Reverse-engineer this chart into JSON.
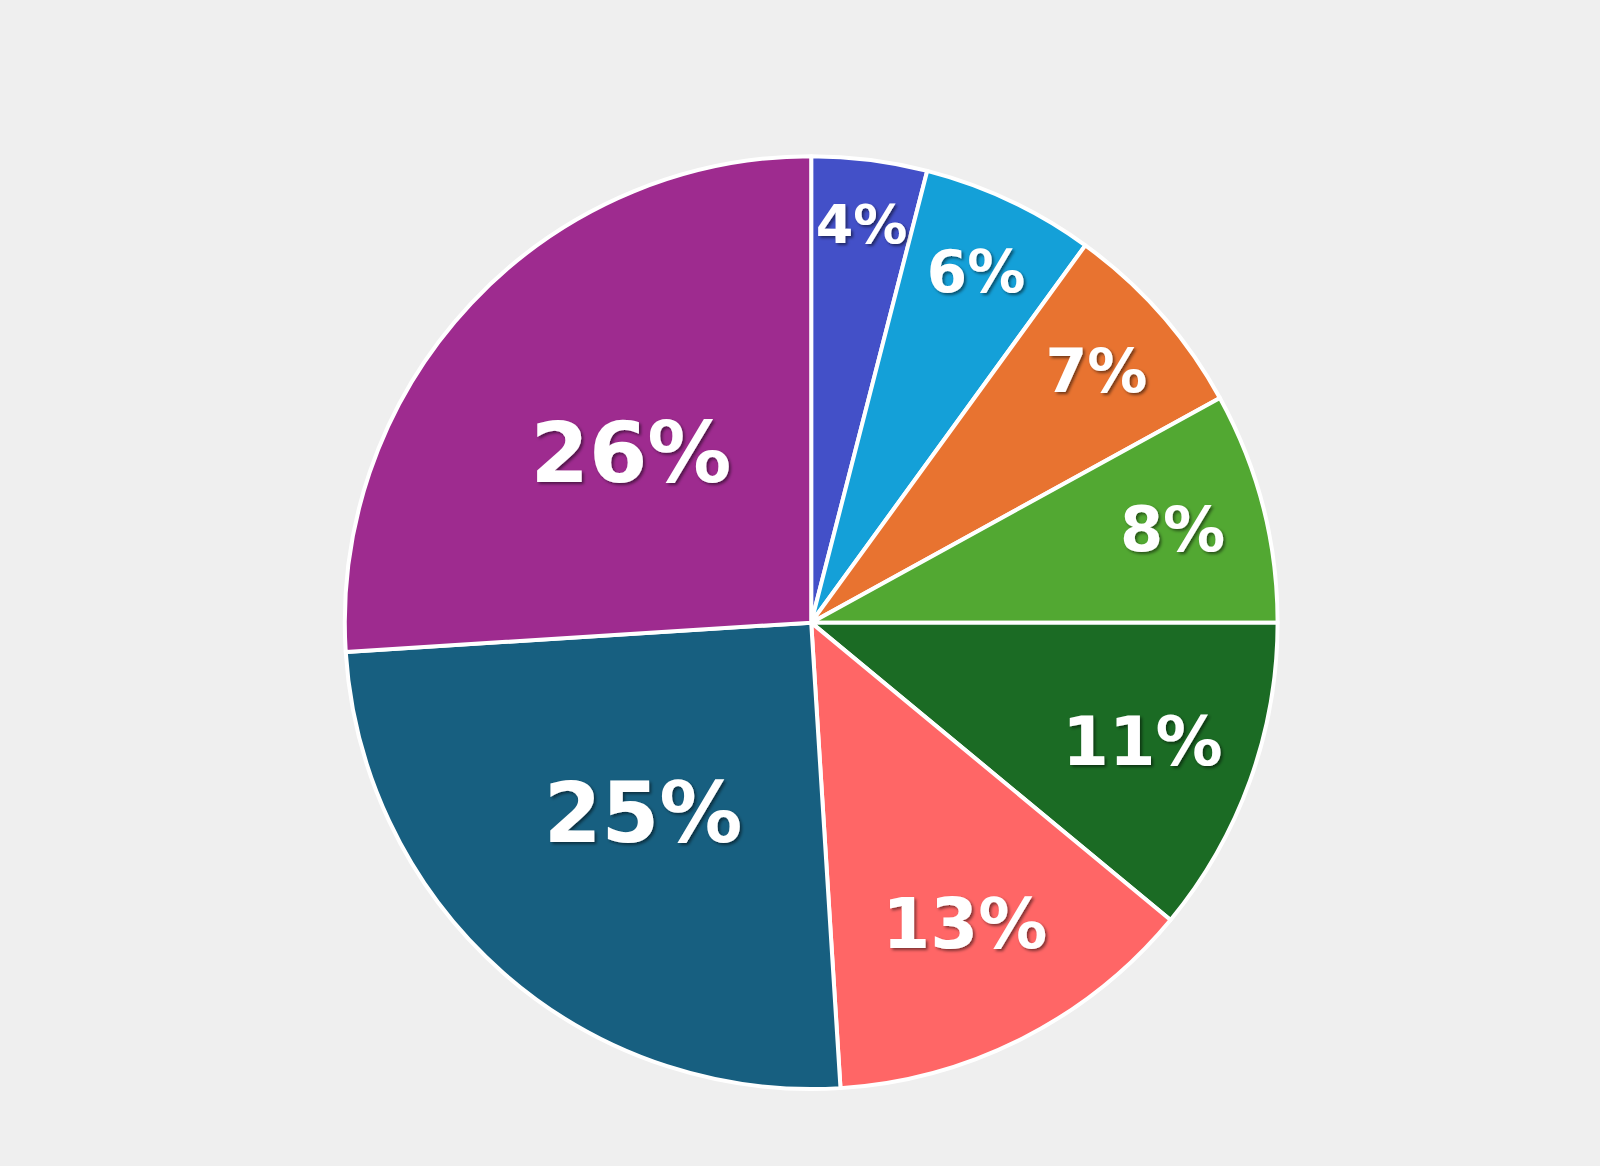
{
  "chart_data": {
    "type": "pie",
    "categories": [
      null,
      null,
      null,
      null,
      null,
      null,
      null,
      null
    ],
    "values": [
      4,
      6,
      7,
      8,
      11,
      13,
      25,
      26
    ],
    "colors": [
      "#4350c8",
      "#14a0d8",
      "#e87330",
      "#52a832",
      "#1b6b24",
      "#ff6666",
      "#175f80",
      "#9e2b8f"
    ],
    "value_labels": [
      "4%",
      "6%",
      "7%",
      "8%",
      "11%",
      "13%",
      "25%",
      "26%"
    ]
  }
}
